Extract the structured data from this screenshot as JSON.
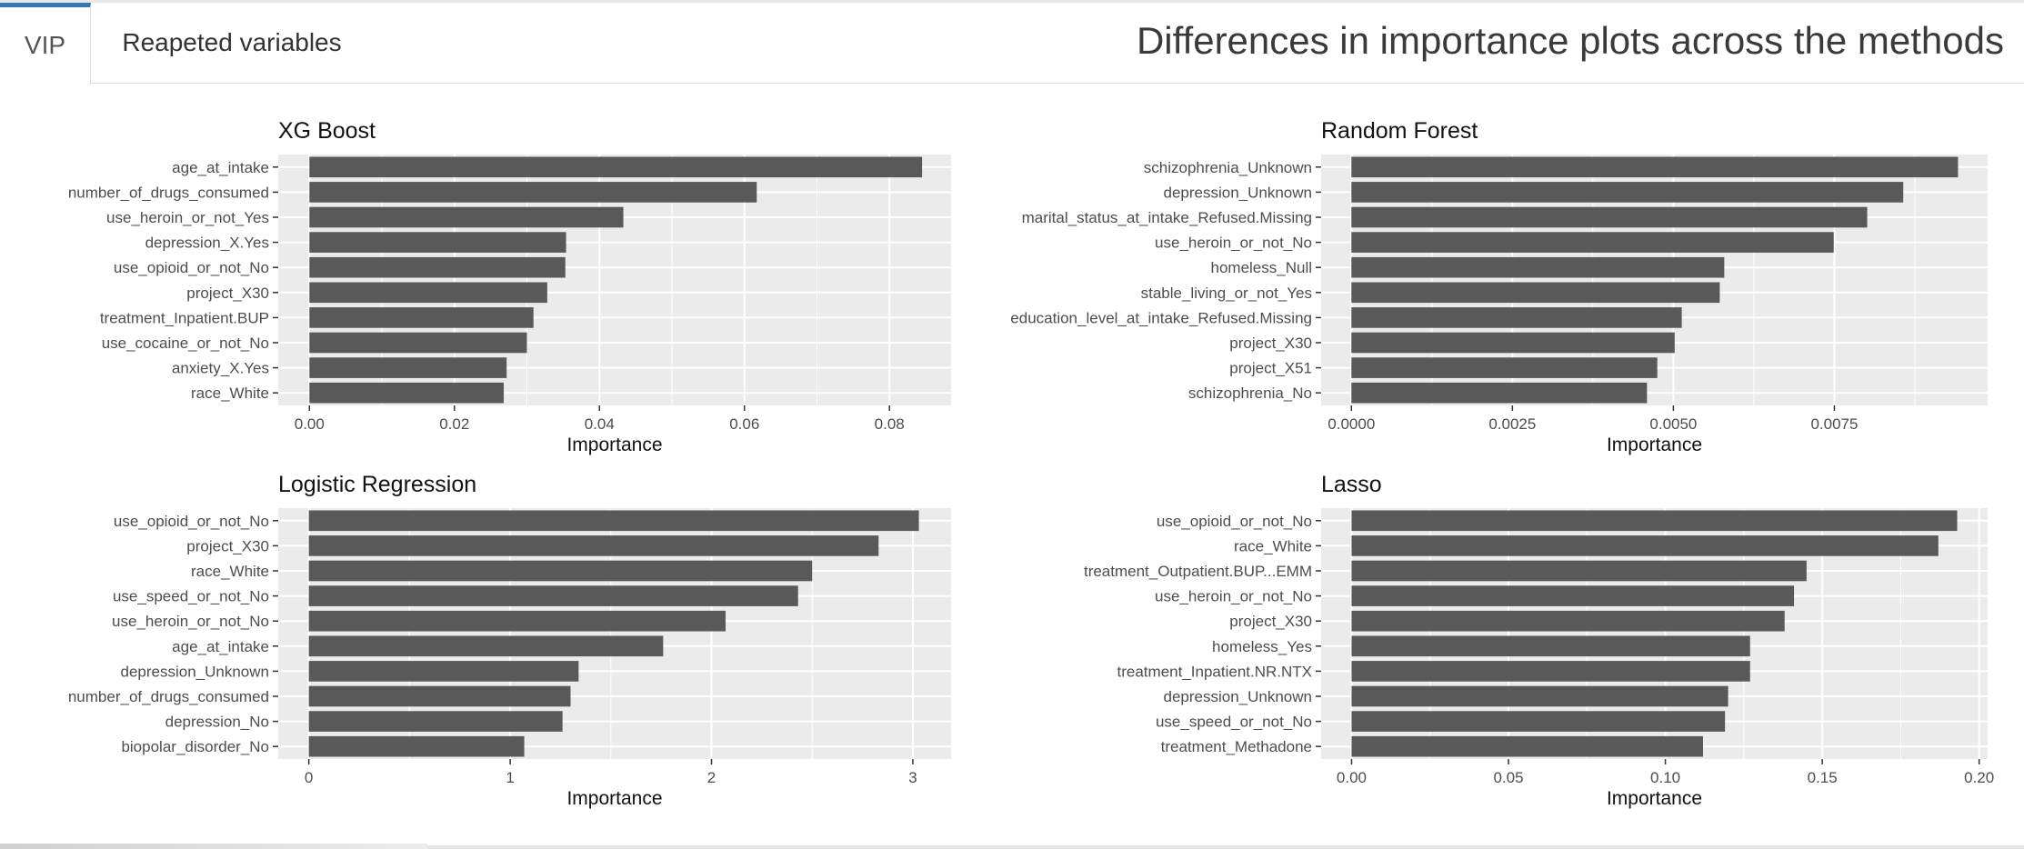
{
  "tabs": [
    {
      "label": "VIP",
      "active": true
    },
    {
      "label": "Reapeted variables",
      "active": false
    }
  ],
  "page_title": "Differences in importance plots across the methods",
  "colors": {
    "bar": "#595959",
    "panel": "#ebebeb",
    "grid": "#ffffff",
    "tab_accent": "#337ab7"
  },
  "chart_data": [
    {
      "type": "bar",
      "orientation": "horizontal",
      "title": "XG Boost",
      "xlabel": "Importance",
      "xlim": [
        -0.0043,
        0.0885
      ],
      "xticks": [
        0.0,
        0.02,
        0.04,
        0.06,
        0.08
      ],
      "xtick_labels": [
        "0.00",
        "0.02",
        "0.04",
        "0.06",
        "0.08"
      ],
      "categories": [
        "age_at_intake",
        "number_of_drugs_consumed",
        "use_heroin_or_not_Yes",
        "depression_X.Yes",
        "use_opioid_or_not_No",
        "project_X30",
        "treatment_Inpatient.BUP",
        "use_cocaine_or_not_No",
        "anxiety_X.Yes",
        "race_White"
      ],
      "values": [
        0.0845,
        0.0617,
        0.0433,
        0.0354,
        0.0353,
        0.0328,
        0.0309,
        0.03,
        0.0272,
        0.0268
      ]
    },
    {
      "type": "bar",
      "orientation": "horizontal",
      "title": "Random Forest",
      "xlabel": "Importance",
      "xlim": [
        -0.00047,
        0.00988
      ],
      "xticks": [
        0.0,
        0.0025,
        0.005,
        0.0075
      ],
      "xtick_labels": [
        "0.0000",
        "0.0025",
        "0.0050",
        "0.0075"
      ],
      "categories": [
        "schizophrenia_Unknown",
        "depression_Unknown",
        "marital_status_at_intake_Refused.Missing",
        "use_heroin_or_not_No",
        "homeless_Null",
        "stable_living_or_not_Yes",
        "education_level_at_intake_Refused.Missing",
        "project_X30",
        "project_X51",
        "schizophrenia_No"
      ],
      "values": [
        0.00942,
        0.00857,
        0.00801,
        0.00749,
        0.00579,
        0.00572,
        0.00513,
        0.00502,
        0.00475,
        0.00459
      ]
    },
    {
      "type": "bar",
      "orientation": "horizontal",
      "title": "Logistic Regression",
      "xlabel": "Importance",
      "xlim": [
        -0.152,
        3.19
      ],
      "xticks": [
        0,
        1,
        2,
        3
      ],
      "xtick_labels": [
        "0",
        "1",
        "2",
        "3"
      ],
      "categories": [
        "use_opioid_or_not_No",
        "project_X30",
        "race_White",
        "use_speed_or_not_No",
        "use_heroin_or_not_No",
        "age_at_intake",
        "depression_Unknown",
        "number_of_drugs_consumed",
        "depression_No",
        "biopolar_disorder_No"
      ],
      "values": [
        3.03,
        2.83,
        2.5,
        2.43,
        2.07,
        1.76,
        1.34,
        1.3,
        1.26,
        1.07
      ]
    },
    {
      "type": "bar",
      "orientation": "horizontal",
      "title": "Lasso",
      "xlabel": "Importance",
      "xlim": [
        -0.0097,
        0.2027
      ],
      "xticks": [
        0.0,
        0.05,
        0.1,
        0.15,
        0.2
      ],
      "xtick_labels": [
        "0.00",
        "0.05",
        "0.10",
        "0.15",
        "0.20"
      ],
      "categories": [
        "use_opioid_or_not_No",
        "race_White",
        "treatment_Outpatient.BUP...EMM",
        "use_heroin_or_not_No",
        "project_X30",
        "homeless_Yes",
        "treatment_Inpatient.NR.NTX",
        "depression_Unknown",
        "use_speed_or_not_No",
        "treatment_Methadone"
      ],
      "values": [
        0.193,
        0.187,
        0.145,
        0.141,
        0.138,
        0.127,
        0.127,
        0.12,
        0.119,
        0.112
      ]
    }
  ]
}
